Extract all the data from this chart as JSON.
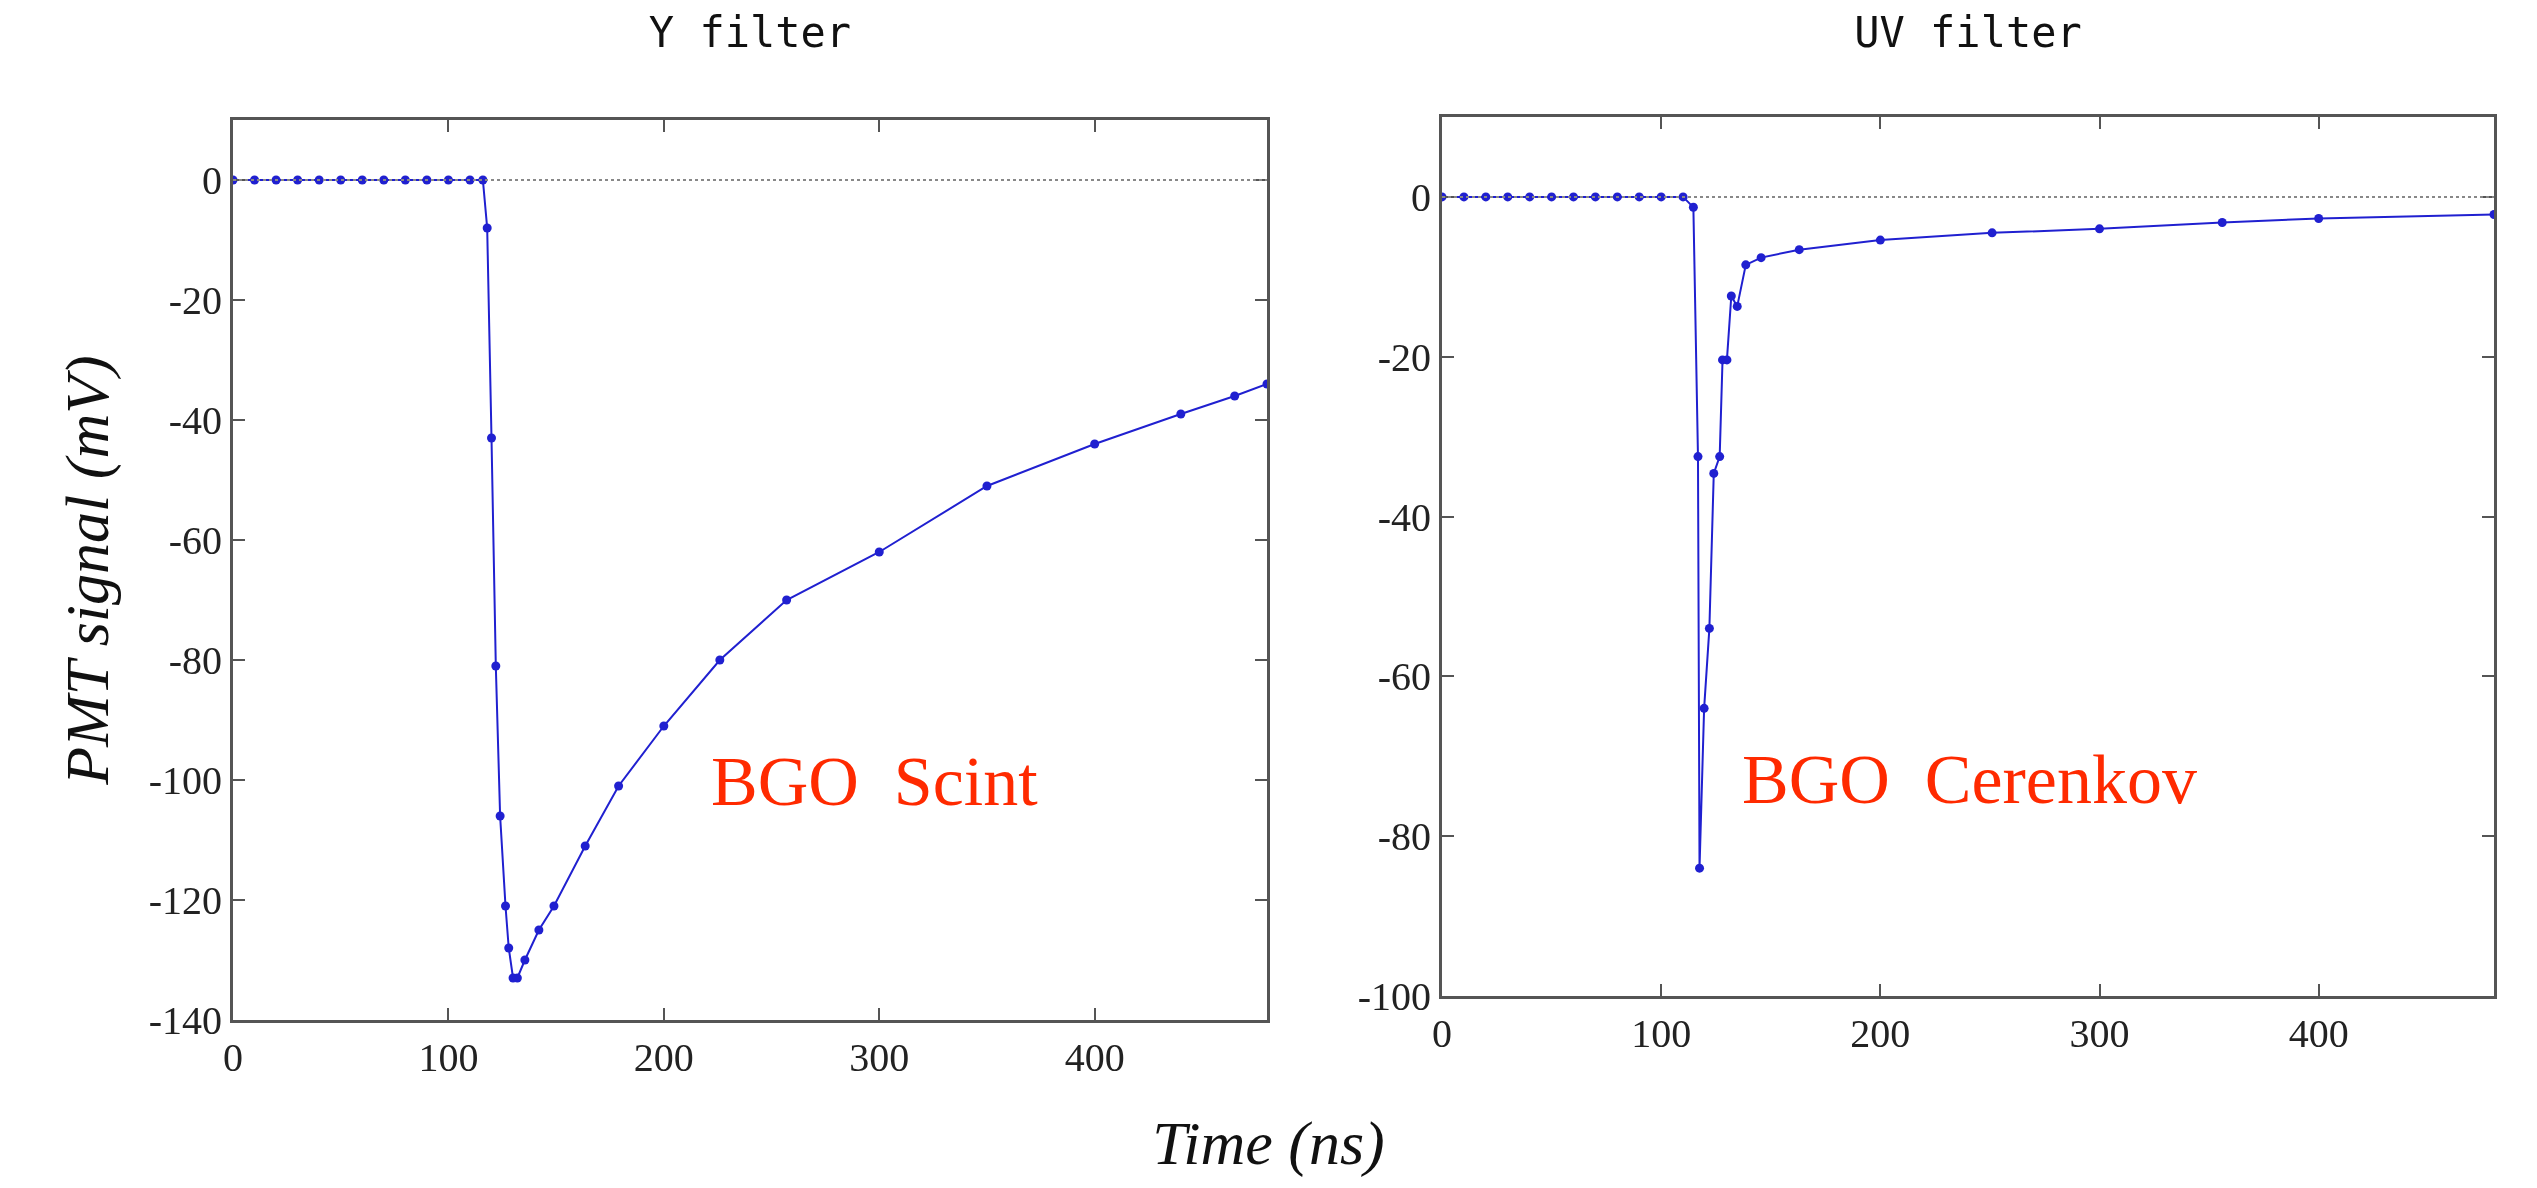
{
  "chart_data": [
    {
      "type": "line",
      "title": "Y filter",
      "xlabel": "Time (ns)",
      "ylabel": "PMT signal (mV)",
      "marker": "circle",
      "line_style": "solid",
      "grid": false,
      "xlim": [
        0,
        480
      ],
      "xticks": [
        0,
        100,
        200,
        300,
        400
      ],
      "ylim": [
        -140,
        10
      ],
      "yticks": [
        -140,
        -120,
        -100,
        -80,
        -60,
        -40,
        -20,
        0
      ],
      "ref_lines": [
        {
          "axis": "y",
          "value": 0,
          "color": "#888888",
          "line_style": "dotted"
        }
      ],
      "annotations": [
        "BGO  Scint"
      ],
      "series": [
        {
          "color": "#2020d0",
          "x": [
            0,
            10,
            20,
            30,
            40,
            50,
            60,
            70,
            80,
            90,
            100,
            110,
            116,
            118,
            120,
            122,
            124,
            126.5,
            128,
            130,
            132,
            135.5,
            142,
            149,
            163.5,
            179,
            200,
            226,
            257,
            300,
            350,
            400,
            440,
            465,
            480
          ],
          "values": [
            0,
            0,
            0,
            0,
            0,
            0,
            0,
            0,
            0,
            0,
            0,
            0,
            0,
            -8,
            -43,
            -81,
            -106,
            -121,
            -128,
            -133,
            -133,
            -130,
            -125,
            -121,
            -111,
            -101,
            -91,
            -80,
            -70,
            -62,
            -51,
            -44,
            -39,
            -36,
            -34
          ]
        }
      ]
    },
    {
      "type": "line",
      "title": "UV filter",
      "marker": "circle",
      "line_style": "solid",
      "grid": false,
      "xlim": [
        0,
        480
      ],
      "xticks": [
        0,
        100,
        200,
        300,
        400
      ],
      "ylim": [
        -100,
        10
      ],
      "yticks": [
        -100,
        -80,
        -60,
        -40,
        -20,
        0
      ],
      "ref_lines": [
        {
          "axis": "y",
          "value": 0,
          "color": "#888888",
          "line_style": "dotted"
        }
      ],
      "annotations": [
        "BGO  Cerenkov"
      ],
      "series": [
        {
          "color": "#2020d0",
          "x": [
            0,
            10,
            20,
            30,
            40,
            50,
            60,
            70,
            80,
            90,
            100,
            110,
            114.7,
            116.8,
            117.5,
            119.6,
            122,
            124,
            126.7,
            128,
            130,
            132,
            134.7,
            138.6,
            145.6,
            163,
            200,
            251,
            300,
            356,
            400,
            480
          ],
          "values": [
            0,
            0,
            0,
            0,
            0,
            0,
            0,
            0,
            0,
            0,
            0,
            0,
            -1.3,
            -32.5,
            -84,
            -64,
            -54,
            -34.6,
            -32.5,
            -20.4,
            -20.4,
            -12.4,
            -13.7,
            -8.5,
            -7.6,
            -6.6,
            -5.4,
            -4.5,
            -4,
            -3.2,
            -2.7,
            -2.2
          ]
        }
      ]
    }
  ]
}
